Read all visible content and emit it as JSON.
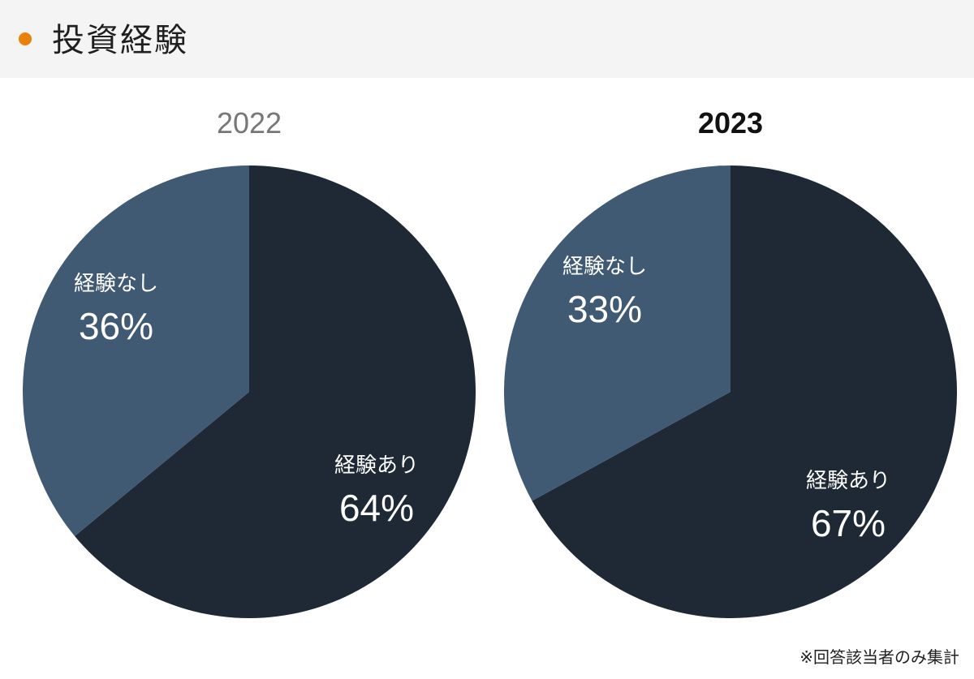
{
  "header": {
    "title": "投資経験"
  },
  "chart_data": [
    {
      "type": "pie",
      "title": "2022",
      "title_color": "#777777",
      "title_bold": false,
      "slices": [
        {
          "label": "経験あり",
          "value": 64,
          "display": "64%",
          "color": "#1e2935"
        },
        {
          "label": "経験なし",
          "value": 36,
          "display": "36%",
          "color": "#405a74"
        }
      ]
    },
    {
      "type": "pie",
      "title": "2023",
      "title_color": "#111111",
      "title_bold": true,
      "slices": [
        {
          "label": "経験あり",
          "value": 67,
          "display": "67%",
          "color": "#1e2935"
        },
        {
          "label": "経験なし",
          "value": 33,
          "display": "33%",
          "color": "#405a74"
        }
      ]
    }
  ],
  "footnote": "※回答該当者のみ集計"
}
